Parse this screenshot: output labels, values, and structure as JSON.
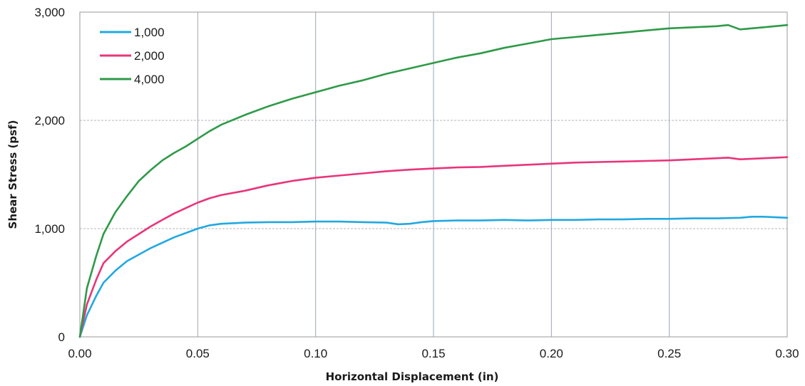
{
  "chart_data": {
    "type": "line",
    "xlabel": "Horizontal Displacement (in)",
    "ylabel": "Shear Stress (psf)",
    "xlim": [
      0,
      0.3
    ],
    "ylim": [
      0,
      3000
    ],
    "x_ticks": [
      0.0,
      0.05,
      0.1,
      0.15,
      0.2,
      0.25,
      0.3
    ],
    "x_tick_labels": [
      "0.00",
      "0.05",
      "0.10",
      "0.15",
      "0.20",
      "0.25",
      "0.30"
    ],
    "y_ticks": [
      0,
      1000,
      2000,
      3000
    ],
    "y_tick_labels": [
      "0",
      "1,000",
      "2,000",
      "3,000"
    ],
    "grid": true,
    "legend_position": "top-left",
    "series": [
      {
        "name": "1,000",
        "color": "#22a8e0",
        "points": [
          [
            0,
            0
          ],
          [
            0.003,
            200
          ],
          [
            0.007,
            380
          ],
          [
            0.01,
            500
          ],
          [
            0.015,
            610
          ],
          [
            0.02,
            700
          ],
          [
            0.025,
            760
          ],
          [
            0.03,
            820
          ],
          [
            0.035,
            870
          ],
          [
            0.04,
            920
          ],
          [
            0.045,
            960
          ],
          [
            0.05,
            1000
          ],
          [
            0.055,
            1030
          ],
          [
            0.06,
            1045
          ],
          [
            0.065,
            1050
          ],
          [
            0.07,
            1055
          ],
          [
            0.08,
            1060
          ],
          [
            0.09,
            1060
          ],
          [
            0.1,
            1065
          ],
          [
            0.11,
            1065
          ],
          [
            0.12,
            1060
          ],
          [
            0.13,
            1055
          ],
          [
            0.135,
            1040
          ],
          [
            0.14,
            1045
          ],
          [
            0.145,
            1060
          ],
          [
            0.15,
            1070
          ],
          [
            0.16,
            1075
          ],
          [
            0.17,
            1075
          ],
          [
            0.18,
            1080
          ],
          [
            0.19,
            1075
          ],
          [
            0.2,
            1080
          ],
          [
            0.21,
            1080
          ],
          [
            0.22,
            1085
          ],
          [
            0.23,
            1085
          ],
          [
            0.24,
            1090
          ],
          [
            0.25,
            1090
          ],
          [
            0.26,
            1095
          ],
          [
            0.27,
            1095
          ],
          [
            0.28,
            1100
          ],
          [
            0.285,
            1110
          ],
          [
            0.29,
            1110
          ],
          [
            0.3,
            1100
          ]
        ]
      },
      {
        "name": "2,000",
        "color": "#e8357a",
        "points": [
          [
            0,
            0
          ],
          [
            0.003,
            300
          ],
          [
            0.007,
            530
          ],
          [
            0.01,
            680
          ],
          [
            0.015,
            790
          ],
          [
            0.02,
            880
          ],
          [
            0.025,
            950
          ],
          [
            0.03,
            1020
          ],
          [
            0.035,
            1080
          ],
          [
            0.04,
            1140
          ],
          [
            0.045,
            1190
          ],
          [
            0.05,
            1240
          ],
          [
            0.055,
            1280
          ],
          [
            0.06,
            1310
          ],
          [
            0.07,
            1350
          ],
          [
            0.08,
            1400
          ],
          [
            0.09,
            1440
          ],
          [
            0.1,
            1470
          ],
          [
            0.11,
            1490
          ],
          [
            0.12,
            1510
          ],
          [
            0.13,
            1530
          ],
          [
            0.14,
            1545
          ],
          [
            0.15,
            1555
          ],
          [
            0.16,
            1565
          ],
          [
            0.17,
            1570
          ],
          [
            0.18,
            1580
          ],
          [
            0.19,
            1590
          ],
          [
            0.2,
            1600
          ],
          [
            0.21,
            1610
          ],
          [
            0.22,
            1615
          ],
          [
            0.23,
            1620
          ],
          [
            0.24,
            1625
          ],
          [
            0.25,
            1630
          ],
          [
            0.26,
            1640
          ],
          [
            0.27,
            1650
          ],
          [
            0.275,
            1655
          ],
          [
            0.28,
            1640
          ],
          [
            0.29,
            1650
          ],
          [
            0.3,
            1660
          ]
        ]
      },
      {
        "name": "4,000",
        "color": "#2e9a48",
        "points": [
          [
            0,
            0
          ],
          [
            0.003,
            450
          ],
          [
            0.007,
            750
          ],
          [
            0.01,
            950
          ],
          [
            0.015,
            1150
          ],
          [
            0.02,
            1300
          ],
          [
            0.025,
            1440
          ],
          [
            0.03,
            1540
          ],
          [
            0.035,
            1630
          ],
          [
            0.04,
            1700
          ],
          [
            0.045,
            1760
          ],
          [
            0.05,
            1830
          ],
          [
            0.055,
            1900
          ],
          [
            0.06,
            1960
          ],
          [
            0.07,
            2050
          ],
          [
            0.08,
            2130
          ],
          [
            0.09,
            2200
          ],
          [
            0.1,
            2260
          ],
          [
            0.11,
            2320
          ],
          [
            0.12,
            2370
          ],
          [
            0.13,
            2430
          ],
          [
            0.14,
            2480
          ],
          [
            0.15,
            2530
          ],
          [
            0.16,
            2580
          ],
          [
            0.17,
            2620
          ],
          [
            0.18,
            2670
          ],
          [
            0.19,
            2710
          ],
          [
            0.2,
            2750
          ],
          [
            0.21,
            2770
          ],
          [
            0.22,
            2790
          ],
          [
            0.23,
            2810
          ],
          [
            0.24,
            2830
          ],
          [
            0.25,
            2850
          ],
          [
            0.26,
            2860
          ],
          [
            0.27,
            2870
          ],
          [
            0.275,
            2880
          ],
          [
            0.28,
            2840
          ],
          [
            0.285,
            2850
          ],
          [
            0.29,
            2860
          ],
          [
            0.3,
            2880
          ]
        ]
      }
    ]
  }
}
